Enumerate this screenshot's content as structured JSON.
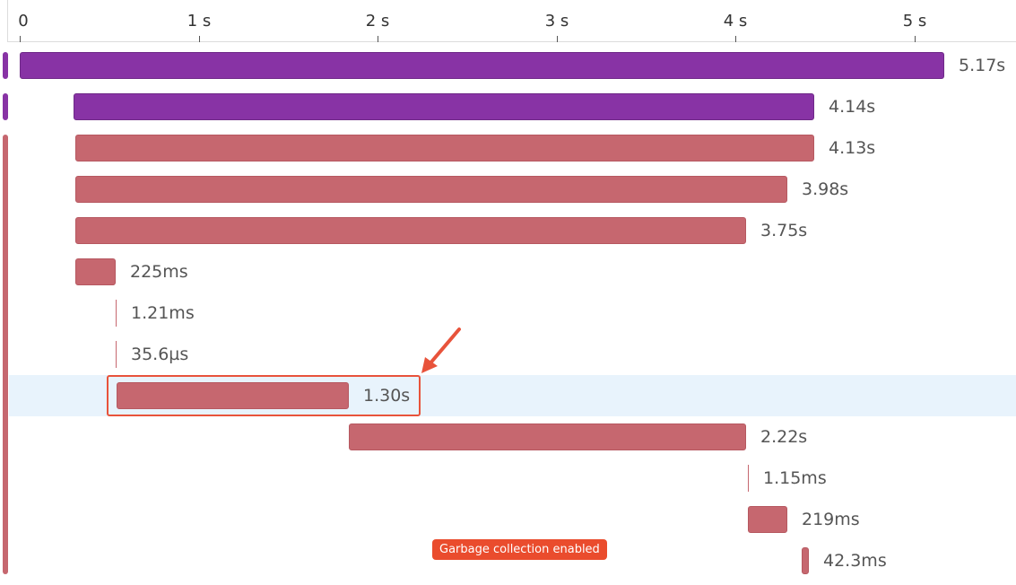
{
  "axis": {
    "ticks": [
      "0",
      "1 s",
      "2 s",
      "3 s",
      "4 s",
      "5 s"
    ]
  },
  "spans": [
    {
      "start": 0.0,
      "end": 5.17,
      "color": "purple",
      "duration": "5.17s"
    },
    {
      "start": 0.3,
      "end": 4.44,
      "color": "purple",
      "duration": "4.14s"
    },
    {
      "start": 0.31,
      "end": 4.44,
      "color": "red",
      "duration": "4.13s"
    },
    {
      "start": 0.31,
      "end": 4.29,
      "color": "red",
      "duration": "3.98s"
    },
    {
      "start": 0.31,
      "end": 4.06,
      "color": "red",
      "duration": "3.75s"
    },
    {
      "start": 0.31,
      "end": 0.535,
      "color": "red",
      "duration": "225ms"
    },
    {
      "start": 0.535,
      "end": 0.536,
      "color": "red",
      "duration": "1.21ms"
    },
    {
      "start": 0.536,
      "end": 0.536,
      "color": "red",
      "duration": "35.6µs"
    },
    {
      "start": 0.54,
      "end": 1.84,
      "color": "red",
      "duration": "1.30s",
      "selected": true
    },
    {
      "start": 1.84,
      "end": 4.06,
      "color": "red",
      "duration": "2.22s"
    },
    {
      "start": 4.07,
      "end": 4.071,
      "color": "red",
      "duration": "1.15ms"
    },
    {
      "start": 4.07,
      "end": 4.29,
      "color": "red",
      "duration": "219ms"
    },
    {
      "start": 4.37,
      "end": 4.412,
      "color": "red",
      "duration": "42.3ms"
    }
  ],
  "badge": {
    "label": "Garbage collection enabled"
  },
  "colors": {
    "purple": "#8833a5",
    "red": "#c6676f",
    "highlight": "#e8f3fc",
    "accent": "#e8533b"
  }
}
